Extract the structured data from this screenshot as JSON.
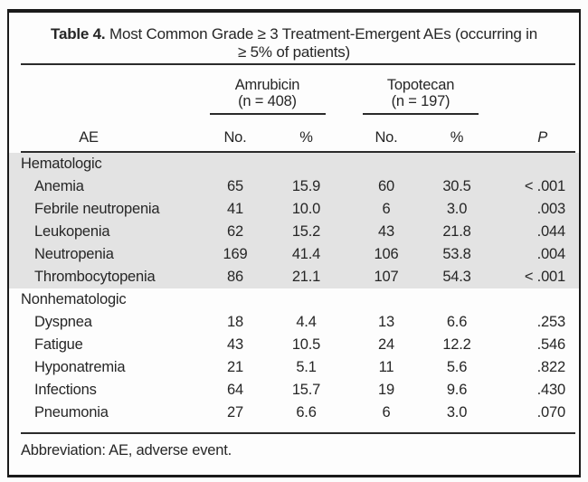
{
  "title": {
    "label": "Table 4.",
    "line1": "Most Common Grade ≥ 3 Treatment-Emergent AEs (occurring in",
    "line2": "≥ 5% of patients)"
  },
  "columns": {
    "ae_header": "AE",
    "groups": [
      {
        "drug": "Amrubicin",
        "n": "(n = 408)",
        "sub": [
          "No.",
          "%"
        ]
      },
      {
        "drug": "Topotecan",
        "n": "(n = 197)",
        "sub": [
          "No.",
          "%"
        ]
      }
    ],
    "p_header": "P"
  },
  "sections": [
    {
      "name": "Hematologic",
      "shaded": true,
      "rows": [
        {
          "ae": "Anemia",
          "amrubicin_no": "65",
          "amrubicin_pct": "15.9",
          "topotecan_no": "60",
          "topotecan_pct": "30.5",
          "p": "< .001"
        },
        {
          "ae": "Febrile neutropenia",
          "amrubicin_no": "41",
          "amrubicin_pct": "10.0",
          "topotecan_no": "6",
          "topotecan_pct": "3.0",
          "p": ".003"
        },
        {
          "ae": "Leukopenia",
          "amrubicin_no": "62",
          "amrubicin_pct": "15.2",
          "topotecan_no": "43",
          "topotecan_pct": "21.8",
          "p": ".044"
        },
        {
          "ae": "Neutropenia",
          "amrubicin_no": "169",
          "amrubicin_pct": "41.4",
          "topotecan_no": "106",
          "topotecan_pct": "53.8",
          "p": ".004"
        },
        {
          "ae": "Thrombocytopenia",
          "amrubicin_no": "86",
          "amrubicin_pct": "21.1",
          "topotecan_no": "107",
          "topotecan_pct": "54.3",
          "p": "< .001"
        }
      ]
    },
    {
      "name": "Nonhematologic",
      "shaded": false,
      "rows": [
        {
          "ae": "Dyspnea",
          "amrubicin_no": "18",
          "amrubicin_pct": "4.4",
          "topotecan_no": "13",
          "topotecan_pct": "6.6",
          "p": ".253"
        },
        {
          "ae": "Fatigue",
          "amrubicin_no": "43",
          "amrubicin_pct": "10.5",
          "topotecan_no": "24",
          "topotecan_pct": "12.2",
          "p": ".546"
        },
        {
          "ae": "Hyponatremia",
          "amrubicin_no": "21",
          "amrubicin_pct": "5.1",
          "topotecan_no": "11",
          "topotecan_pct": "5.6",
          "p": ".822"
        },
        {
          "ae": "Infections",
          "amrubicin_no": "64",
          "amrubicin_pct": "15.7",
          "topotecan_no": "19",
          "topotecan_pct": "9.6",
          "p": ".430"
        },
        {
          "ae": "Pneumonia",
          "amrubicin_no": "27",
          "amrubicin_pct": "6.6",
          "topotecan_no": "6",
          "topotecan_pct": "3.0",
          "p": ".070"
        }
      ]
    }
  ],
  "footnote": "Abbreviation: AE, adverse event.",
  "colors": {
    "shade": "#e3e3e3",
    "border": "#1a1a1a",
    "rule": "#2b2b2b",
    "text": "#262626",
    "background": "#fdfdfd"
  }
}
